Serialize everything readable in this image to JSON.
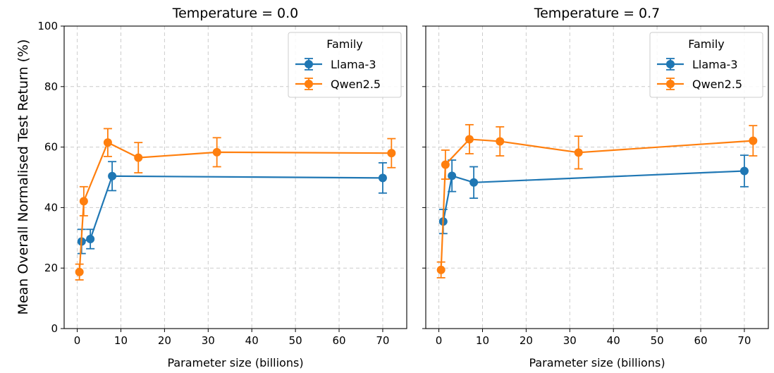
{
  "chart_data": [
    {
      "type": "line",
      "title": "Temperature = 0.0",
      "xlabel": "Parameter size (billions)",
      "ylabel": "Mean Overall Normalised Test Return (%)",
      "xlim": [
        -3,
        75.5
      ],
      "ylim": [
        0,
        100
      ],
      "xticks": [
        0,
        10,
        20,
        30,
        40,
        50,
        60,
        70
      ],
      "yticks": [
        0,
        20,
        40,
        60,
        80,
        100
      ],
      "grid": true,
      "legend": {
        "title": "Family",
        "placement": "top-right"
      },
      "series": [
        {
          "name": "Llama-3",
          "color": "#1f77b4",
          "x": [
            1,
            3,
            8,
            70
          ],
          "y": [
            28.8,
            29.6,
            50.4,
            49.8
          ],
          "err": [
            4.0,
            3.2,
            4.8,
            5.0
          ]
        },
        {
          "name": "Qwen2.5",
          "color": "#ff7f0e",
          "x": [
            0.5,
            1.5,
            7,
            14,
            32,
            72
          ],
          "y": [
            18.7,
            42.1,
            61.5,
            56.5,
            58.3,
            58.0
          ],
          "err": [
            2.6,
            4.8,
            4.6,
            5.0,
            4.8,
            4.8
          ]
        }
      ]
    },
    {
      "type": "line",
      "title": "Temperature = 0.7",
      "xlabel": "Parameter size (billions)",
      "ylabel": "",
      "xlim": [
        -3,
        75.5
      ],
      "ylim": [
        0,
        100
      ],
      "xticks": [
        0,
        10,
        20,
        30,
        40,
        50,
        60,
        70
      ],
      "yticks": [
        0,
        20,
        40,
        60,
        80,
        100
      ],
      "grid": true,
      "legend": {
        "title": "Family",
        "placement": "top-right"
      },
      "series": [
        {
          "name": "Llama-3",
          "color": "#1f77b4",
          "x": [
            1,
            3,
            8,
            70
          ],
          "y": [
            35.4,
            50.5,
            48.3,
            52.1
          ],
          "err": [
            4.0,
            5.2,
            5.2,
            5.2
          ]
        },
        {
          "name": "Qwen2.5",
          "color": "#ff7f0e",
          "x": [
            0.5,
            1.5,
            7,
            14,
            32,
            72
          ],
          "y": [
            19.4,
            54.2,
            62.6,
            61.9,
            58.2,
            62.1
          ],
          "err": [
            2.6,
            4.8,
            4.8,
            4.8,
            5.4,
            5.0
          ]
        }
      ]
    }
  ]
}
